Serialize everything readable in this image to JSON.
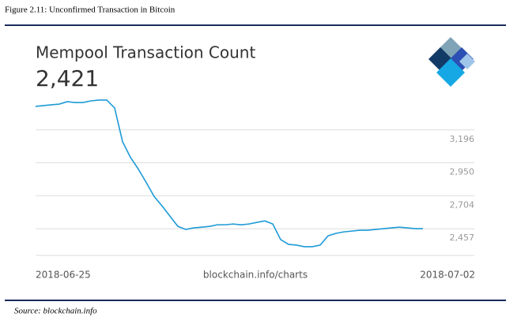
{
  "caption": "Figure 2.11: Unconfirmed Transaction in Bitcoin",
  "source": "Source: blockchain.info",
  "chart_data": {
    "type": "line",
    "title": "Mempool Transaction Count",
    "subtitle": "2,421",
    "x_start_label": "2018-06-25",
    "x_center_label": "blockchain.info/charts",
    "x_end_label": "2018-07-02",
    "color": "#1c9ad6",
    "grid": true,
    "ylim": [
      2258,
      3450
    ],
    "yticks": [
      {
        "value": 2457,
        "label": "2,457"
      },
      {
        "value": 2704,
        "label": "2,704"
      },
      {
        "value": 2950,
        "label": "2,950"
      },
      {
        "value": 3196,
        "label": "3,196"
      }
    ],
    "values": [
      3372,
      3378,
      3384,
      3389,
      3407,
      3401,
      3401,
      3413,
      3419,
      3419,
      3360,
      3108,
      2991,
      2903,
      2803,
      2698,
      2628,
      2551,
      2475,
      2452,
      2464,
      2469,
      2475,
      2487,
      2487,
      2493,
      2487,
      2493,
      2505,
      2516,
      2493,
      2376,
      2341,
      2335,
      2323,
      2323,
      2335,
      2405,
      2423,
      2434,
      2440,
      2446,
      2446,
      2452,
      2458,
      2464,
      2469,
      2464,
      2458,
      2458
    ]
  }
}
